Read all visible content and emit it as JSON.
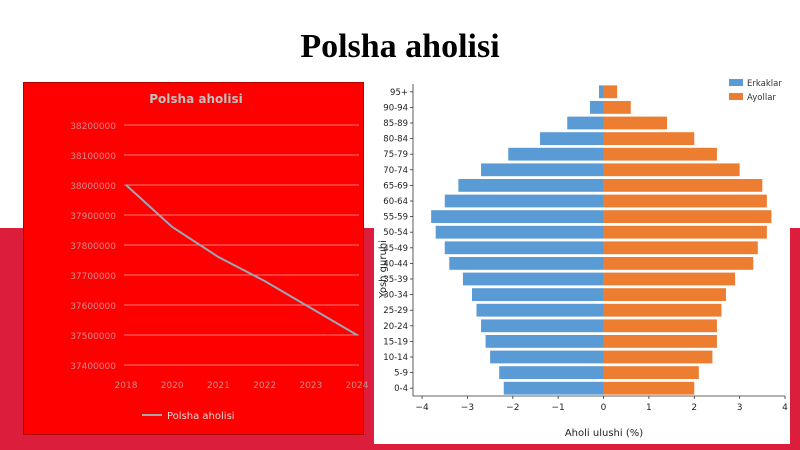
{
  "slide": {
    "title": "Polsha aholisi"
  },
  "colors": {
    "background_band": "#dc1e3c",
    "left_panel": "#ff0000",
    "men": "#5b9bd5",
    "women": "#ed7d31"
  },
  "chart_data": [
    {
      "type": "line",
      "title": "Polsha aholisi",
      "x": [
        "2018",
        "2020",
        "2021",
        "2022",
        "2023",
        "2024"
      ],
      "y_tick_labels": [
        "38200000",
        "38100000",
        "38000000",
        "37900000",
        "37800000",
        "37700000",
        "37600000",
        "37500000",
        "37400000"
      ],
      "ylim": [
        37400000,
        38200000
      ],
      "series": [
        {
          "name": "Polsha aholisi",
          "values": [
            38000000,
            37860000,
            37760000,
            37680000,
            37590000,
            37500000
          ]
        }
      ],
      "legend": "bottom",
      "grid": true
    },
    {
      "type": "bar",
      "orientation": "horizontal",
      "categories": [
        "0-4",
        "5-9",
        "10-14",
        "15-19",
        "20-24",
        "25-29",
        "30-34",
        "35-39",
        "40-44",
        "45-49",
        "50-54",
        "55-59",
        "60-64",
        "65-69",
        "70-74",
        "75-79",
        "80-84",
        "85-89",
        "90-94",
        "95+"
      ],
      "xlabel": "Aholi ulushi (%)",
      "ylabel": "Yosh guruhi",
      "xlim": [
        -4.2,
        4.0
      ],
      "x_ticks": [
        "−4",
        "−3",
        "−2",
        "−1",
        "0",
        "1",
        "2",
        "3",
        "4"
      ],
      "series": [
        {
          "name": "Erkaklar",
          "values": [
            -2.2,
            -2.3,
            -2.5,
            -2.6,
            -2.7,
            -2.8,
            -2.9,
            -3.1,
            -3.4,
            -3.5,
            -3.7,
            -3.8,
            -3.5,
            -3.2,
            -2.7,
            -2.1,
            -1.4,
            -0.8,
            -0.3,
            -0.1
          ]
        },
        {
          "name": "Ayollar",
          "values": [
            2.0,
            2.1,
            2.4,
            2.5,
            2.5,
            2.6,
            2.7,
            2.9,
            3.3,
            3.4,
            3.6,
            3.7,
            3.6,
            3.5,
            3.0,
            2.5,
            2.0,
            1.4,
            0.6,
            0.3
          ]
        }
      ],
      "legend": "top-right",
      "grid": false
    }
  ]
}
